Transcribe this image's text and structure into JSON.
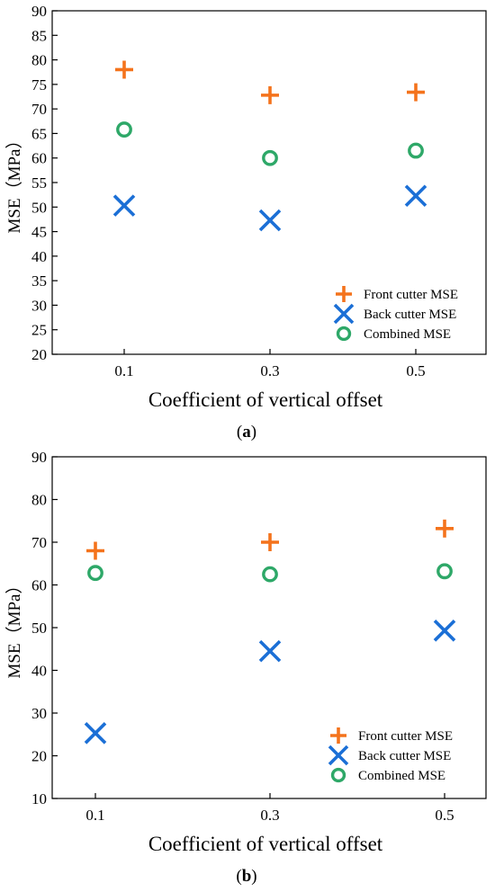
{
  "chart_data": [
    {
      "type": "scatter",
      "panel_label": "(a)",
      "panel_letter": "a",
      "xlabel": "Coefficient of vertical offset",
      "ylabel": "MSE（MPa）",
      "categories": [
        "0.1",
        "0.3",
        "0.5"
      ],
      "ylim": [
        20,
        90
      ],
      "yticks": [
        20,
        25,
        30,
        35,
        40,
        45,
        50,
        55,
        60,
        65,
        70,
        75,
        80,
        85,
        90
      ],
      "grid": false,
      "legend_position": "bottom-right",
      "series": [
        {
          "name": "Front cutter MSE",
          "marker": "plus",
          "color": "#f4731c",
          "values": [
            78.0,
            72.8,
            73.4
          ]
        },
        {
          "name": "Back cutter MSE",
          "marker": "x",
          "color": "#1b6fd6",
          "values": [
            50.3,
            47.3,
            52.3
          ]
        },
        {
          "name": "Combined MSE",
          "marker": "circle",
          "color": "#2ea868",
          "values": [
            65.8,
            60.0,
            61.5
          ]
        }
      ]
    },
    {
      "type": "scatter",
      "panel_label": "(b)",
      "panel_letter": "b",
      "xlabel": "Coefficient of vertical offset",
      "ylabel": "MSE（MPa）",
      "categories": [
        "0.1",
        "0.3",
        "0.5"
      ],
      "ylim": [
        10,
        90
      ],
      "yticks": [
        10,
        20,
        30,
        40,
        50,
        60,
        70,
        80,
        90
      ],
      "grid": false,
      "legend_position": "bottom-right",
      "series": [
        {
          "name": "Front cutter MSE",
          "marker": "plus",
          "color": "#f4731c",
          "values": [
            68.0,
            70.0,
            73.2
          ]
        },
        {
          "name": "Back cutter MSE",
          "marker": "x",
          "color": "#1b6fd6",
          "values": [
            25.3,
            44.5,
            49.3
          ]
        },
        {
          "name": "Combined MSE",
          "marker": "circle",
          "color": "#2ea868",
          "values": [
            62.8,
            62.5,
            63.2
          ]
        }
      ]
    }
  ]
}
